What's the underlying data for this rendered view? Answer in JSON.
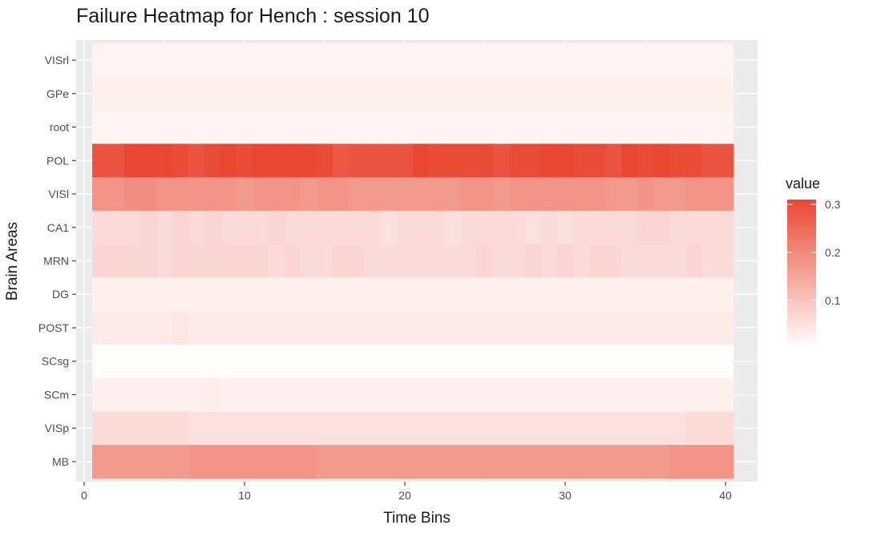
{
  "chart_data": {
    "type": "heatmap",
    "title": "Failure Heatmap for Hench : session 10",
    "xlabel": "Time Bins",
    "ylabel": "Brain Areas",
    "x": [
      1,
      2,
      3,
      4,
      5,
      6,
      7,
      8,
      9,
      10,
      11,
      12,
      13,
      14,
      15,
      16,
      17,
      18,
      19,
      20,
      21,
      22,
      23,
      24,
      25,
      26,
      27,
      28,
      29,
      30,
      31,
      32,
      33,
      34,
      35,
      36,
      37,
      38,
      39,
      40
    ],
    "x_ticks": [
      "0",
      "10",
      "20",
      "30",
      "40"
    ],
    "xlim": [
      -0.5,
      42
    ],
    "categories": [
      "VISrl",
      "GPe",
      "root",
      "POL",
      "VISl",
      "CA1",
      "MRN",
      "DG",
      "POST",
      "SCsg",
      "SCm",
      "VISp",
      "MB"
    ],
    "values": [
      [
        0.02,
        0.02,
        0.02,
        0.02,
        0.02,
        0.02,
        0.02,
        0.02,
        0.02,
        0.02,
        0.02,
        0.02,
        0.02,
        0.02,
        0.02,
        0.02,
        0.02,
        0.02,
        0.02,
        0.02,
        0.02,
        0.02,
        0.02,
        0.02,
        0.02,
        0.02,
        0.02,
        0.02,
        0.02,
        0.02,
        0.02,
        0.02,
        0.02,
        0.02,
        0.02,
        0.02,
        0.02,
        0.02,
        0.02,
        0.02
      ],
      [
        0.025,
        0.025,
        0.025,
        0.025,
        0.025,
        0.025,
        0.025,
        0.025,
        0.025,
        0.025,
        0.025,
        0.025,
        0.025,
        0.025,
        0.025,
        0.025,
        0.025,
        0.025,
        0.025,
        0.025,
        0.025,
        0.025,
        0.025,
        0.025,
        0.025,
        0.025,
        0.025,
        0.025,
        0.025,
        0.025,
        0.025,
        0.025,
        0.025,
        0.025,
        0.025,
        0.025,
        0.025,
        0.025,
        0.025,
        0.025
      ],
      [
        0.018,
        0.018,
        0.018,
        0.018,
        0.018,
        0.018,
        0.018,
        0.018,
        0.018,
        0.018,
        0.018,
        0.018,
        0.018,
        0.018,
        0.018,
        0.018,
        0.018,
        0.018,
        0.018,
        0.018,
        0.018,
        0.018,
        0.018,
        0.018,
        0.018,
        0.018,
        0.018,
        0.018,
        0.018,
        0.018,
        0.018,
        0.018,
        0.018,
        0.018,
        0.018,
        0.018,
        0.018,
        0.018,
        0.018,
        0.018
      ],
      [
        0.29,
        0.29,
        0.31,
        0.31,
        0.31,
        0.3,
        0.29,
        0.3,
        0.31,
        0.3,
        0.31,
        0.31,
        0.31,
        0.31,
        0.3,
        0.28,
        0.29,
        0.29,
        0.29,
        0.29,
        0.31,
        0.3,
        0.3,
        0.3,
        0.3,
        0.29,
        0.3,
        0.3,
        0.31,
        0.31,
        0.3,
        0.3,
        0.29,
        0.31,
        0.3,
        0.31,
        0.3,
        0.3,
        0.29,
        0.29
      ],
      [
        0.18,
        0.18,
        0.19,
        0.19,
        0.18,
        0.18,
        0.18,
        0.18,
        0.18,
        0.17,
        0.18,
        0.18,
        0.18,
        0.17,
        0.18,
        0.18,
        0.17,
        0.17,
        0.17,
        0.17,
        0.17,
        0.17,
        0.17,
        0.18,
        0.18,
        0.17,
        0.18,
        0.18,
        0.18,
        0.18,
        0.18,
        0.18,
        0.17,
        0.17,
        0.18,
        0.17,
        0.17,
        0.18,
        0.18,
        0.18
      ],
      [
        0.06,
        0.06,
        0.06,
        0.07,
        0.06,
        0.07,
        0.06,
        0.07,
        0.06,
        0.06,
        0.06,
        0.07,
        0.06,
        0.06,
        0.06,
        0.06,
        0.06,
        0.06,
        0.05,
        0.06,
        0.06,
        0.06,
        0.05,
        0.06,
        0.06,
        0.06,
        0.06,
        0.05,
        0.06,
        0.05,
        0.06,
        0.06,
        0.06,
        0.06,
        0.07,
        0.07,
        0.06,
        0.06,
        0.06,
        0.06
      ],
      [
        0.07,
        0.07,
        0.07,
        0.07,
        0.06,
        0.07,
        0.07,
        0.07,
        0.07,
        0.07,
        0.07,
        0.06,
        0.07,
        0.06,
        0.06,
        0.07,
        0.07,
        0.06,
        0.06,
        0.06,
        0.06,
        0.06,
        0.06,
        0.06,
        0.07,
        0.06,
        0.06,
        0.07,
        0.06,
        0.07,
        0.06,
        0.07,
        0.07,
        0.06,
        0.06,
        0.06,
        0.06,
        0.07,
        0.06,
        0.06
      ],
      [
        0.025,
        0.025,
        0.025,
        0.025,
        0.025,
        0.025,
        0.025,
        0.025,
        0.025,
        0.025,
        0.025,
        0.025,
        0.025,
        0.025,
        0.025,
        0.025,
        0.025,
        0.025,
        0.025,
        0.025,
        0.025,
        0.025,
        0.025,
        0.025,
        0.025,
        0.025,
        0.025,
        0.025,
        0.025,
        0.025,
        0.025,
        0.025,
        0.025,
        0.025,
        0.025,
        0.025,
        0.025,
        0.025,
        0.025,
        0.025
      ],
      [
        0.035,
        0.035,
        0.035,
        0.035,
        0.035,
        0.04,
        0.035,
        0.035,
        0.035,
        0.035,
        0.035,
        0.035,
        0.035,
        0.035,
        0.035,
        0.035,
        0.035,
        0.035,
        0.035,
        0.035,
        0.035,
        0.035,
        0.035,
        0.035,
        0.035,
        0.035,
        0.035,
        0.035,
        0.035,
        0.035,
        0.035,
        0.035,
        0.035,
        0.035,
        0.035,
        0.035,
        0.035,
        0.035,
        0.035,
        0.035
      ],
      [
        0.005,
        0.005,
        0.005,
        0.005,
        0.005,
        0.005,
        0.005,
        0.005,
        0.005,
        0.005,
        0.005,
        0.005,
        0.005,
        0.005,
        0.005,
        0.005,
        0.005,
        0.005,
        0.005,
        0.005,
        0.005,
        0.005,
        0.005,
        0.005,
        0.005,
        0.005,
        0.005,
        0.005,
        0.005,
        0.005,
        0.005,
        0.005,
        0.005,
        0.005,
        0.005,
        0.005,
        0.005,
        0.005,
        0.005,
        0.005
      ],
      [
        0.025,
        0.025,
        0.025,
        0.025,
        0.025,
        0.025,
        0.025,
        0.03,
        0.025,
        0.025,
        0.025,
        0.025,
        0.025,
        0.025,
        0.025,
        0.025,
        0.025,
        0.025,
        0.025,
        0.025,
        0.025,
        0.025,
        0.025,
        0.025,
        0.025,
        0.025,
        0.025,
        0.025,
        0.025,
        0.025,
        0.025,
        0.025,
        0.025,
        0.025,
        0.025,
        0.025,
        0.025,
        0.025,
        0.025,
        0.025
      ],
      [
        0.06,
        0.06,
        0.06,
        0.06,
        0.06,
        0.06,
        0.05,
        0.05,
        0.05,
        0.05,
        0.05,
        0.05,
        0.05,
        0.05,
        0.05,
        0.05,
        0.05,
        0.05,
        0.05,
        0.05,
        0.05,
        0.05,
        0.05,
        0.05,
        0.05,
        0.05,
        0.05,
        0.05,
        0.05,
        0.05,
        0.05,
        0.05,
        0.05,
        0.05,
        0.05,
        0.05,
        0.05,
        0.06,
        0.06,
        0.06
      ],
      [
        0.17,
        0.17,
        0.17,
        0.17,
        0.17,
        0.17,
        0.18,
        0.18,
        0.18,
        0.18,
        0.18,
        0.18,
        0.18,
        0.18,
        0.17,
        0.17,
        0.17,
        0.17,
        0.17,
        0.17,
        0.17,
        0.17,
        0.17,
        0.17,
        0.17,
        0.17,
        0.17,
        0.17,
        0.17,
        0.17,
        0.17,
        0.17,
        0.17,
        0.17,
        0.17,
        0.17,
        0.18,
        0.18,
        0.18,
        0.18
      ]
    ],
    "color_scale": {
      "low_color": "#ffffff",
      "high_color": "#e8412b",
      "range": [
        0.0,
        0.32
      ]
    },
    "legend": {
      "title": "value",
      "placement": "right",
      "ticks": [
        0.1,
        0.2,
        0.3
      ],
      "tick_labels": [
        "0.1",
        "0.2",
        "0.3"
      ]
    },
    "panel_background": "#ebebeb",
    "grid": true
  }
}
